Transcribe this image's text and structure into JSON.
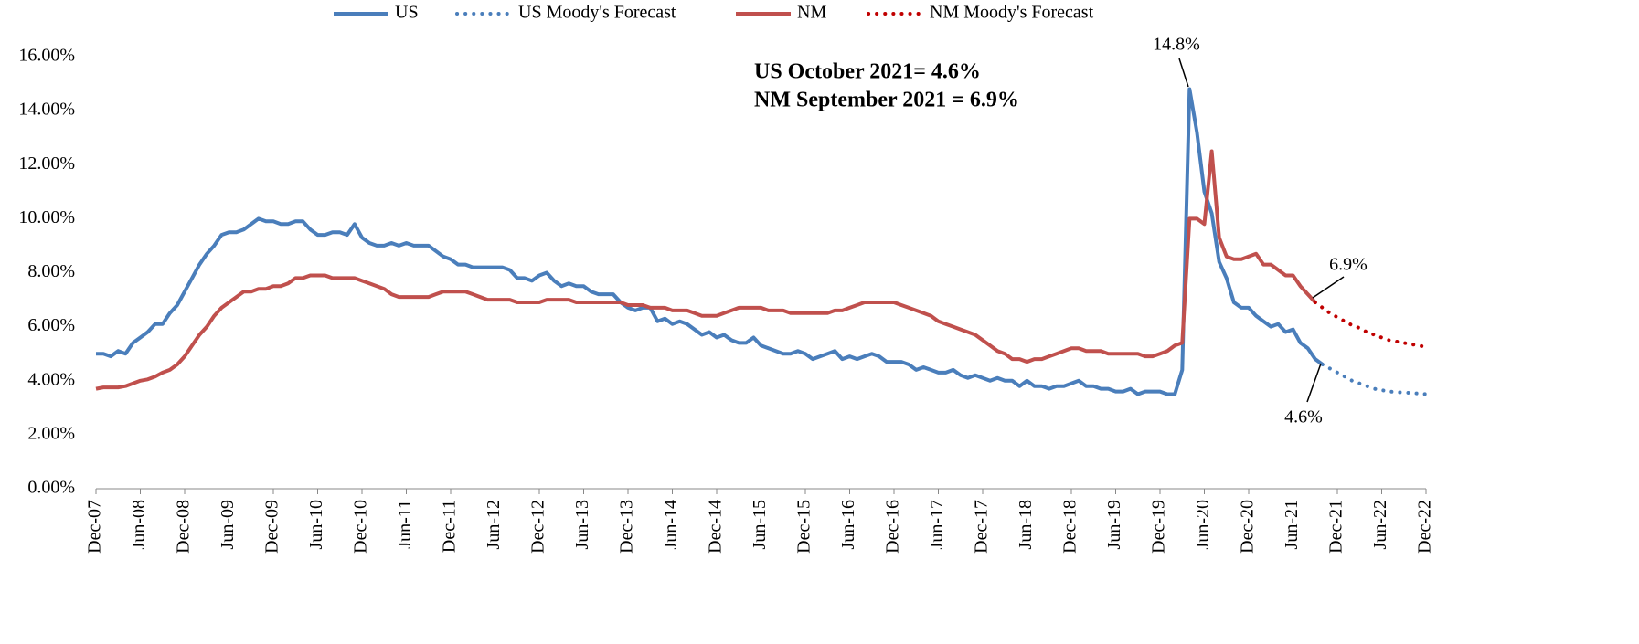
{
  "chart_data": {
    "type": "line",
    "categories": [
      "Dec-07",
      null,
      null,
      null,
      null,
      null,
      "Jun-08",
      null,
      null,
      null,
      null,
      null,
      "Dec-08",
      null,
      null,
      null,
      null,
      null,
      "Jun-09",
      null,
      null,
      null,
      null,
      null,
      "Dec-09",
      null,
      null,
      null,
      null,
      null,
      "Jun-10",
      null,
      null,
      null,
      null,
      null,
      "Dec-10",
      null,
      null,
      null,
      null,
      null,
      "Jun-11",
      null,
      null,
      null,
      null,
      null,
      "Dec-11",
      null,
      null,
      null,
      null,
      null,
      "Jun-12",
      null,
      null,
      null,
      null,
      null,
      "Dec-12",
      null,
      null,
      null,
      null,
      null,
      "Jun-13",
      null,
      null,
      null,
      null,
      null,
      "Dec-13",
      null,
      null,
      null,
      null,
      null,
      "Jun-14",
      null,
      null,
      null,
      null,
      null,
      "Dec-14",
      null,
      null,
      null,
      null,
      null,
      "Jun-15",
      null,
      null,
      null,
      null,
      null,
      "Dec-15",
      null,
      null,
      null,
      null,
      null,
      "Jun-16",
      null,
      null,
      null,
      null,
      null,
      "Dec-16",
      null,
      null,
      null,
      null,
      null,
      "Jun-17",
      null,
      null,
      null,
      null,
      null,
      "Dec-17",
      null,
      null,
      null,
      null,
      null,
      "Jun-18",
      null,
      null,
      null,
      null,
      null,
      "Dec-18",
      null,
      null,
      null,
      null,
      null,
      "Jun-19",
      null,
      null,
      null,
      null,
      null,
      "Dec-19",
      null,
      null,
      null,
      null,
      null,
      "Jun-20",
      null,
      null,
      null,
      null,
      null,
      "Dec-20",
      null,
      null,
      null,
      null,
      null,
      "Jun-21",
      null,
      null,
      null,
      null,
      null,
      "Dec-21",
      null,
      null,
      null,
      null,
      null,
      "Jun-22",
      null,
      null,
      null,
      null,
      null,
      "Dec-22"
    ],
    "series": [
      {
        "name": "US",
        "color": "#4a7ebb",
        "style": "solid",
        "values": [
          5.0,
          5.0,
          4.9,
          5.1,
          5.0,
          5.4,
          5.6,
          5.8,
          6.1,
          6.1,
          6.5,
          6.8,
          7.3,
          7.8,
          8.3,
          8.7,
          9.0,
          9.4,
          9.5,
          9.5,
          9.6,
          9.8,
          10.0,
          9.9,
          9.9,
          9.8,
          9.8,
          9.9,
          9.9,
          9.6,
          9.4,
          9.4,
          9.5,
          9.5,
          9.4,
          9.8,
          9.3,
          9.1,
          9.0,
          9.0,
          9.1,
          9.0,
          9.1,
          9.0,
          9.0,
          9.0,
          8.8,
          8.6,
          8.5,
          8.3,
          8.3,
          8.2,
          8.2,
          8.2,
          8.2,
          8.2,
          8.1,
          7.8,
          7.8,
          7.7,
          7.9,
          8.0,
          7.7,
          7.5,
          7.6,
          7.5,
          7.5,
          7.3,
          7.2,
          7.2,
          7.2,
          6.9,
          6.7,
          6.6,
          6.7,
          6.7,
          6.2,
          6.3,
          6.1,
          6.2,
          6.1,
          5.9,
          5.7,
          5.8,
          5.6,
          5.7,
          5.5,
          5.4,
          5.4,
          5.6,
          5.3,
          5.2,
          5.1,
          5.0,
          5.0,
          5.1,
          5.0,
          4.8,
          4.9,
          5.0,
          5.1,
          4.8,
          4.9,
          4.8,
          4.9,
          5.0,
          4.9,
          4.7,
          4.7,
          4.7,
          4.6,
          4.4,
          4.5,
          4.4,
          4.3,
          4.3,
          4.4,
          4.2,
          4.1,
          4.2,
          4.1,
          4.0,
          4.1,
          4.0,
          4.0,
          3.8,
          4.0,
          3.8,
          3.8,
          3.7,
          3.8,
          3.8,
          3.9,
          4.0,
          3.8,
          3.8,
          3.7,
          3.7,
          3.6,
          3.6,
          3.7,
          3.5,
          3.6,
          3.6,
          3.6,
          3.5,
          3.5,
          4.4,
          14.8,
          13.2,
          11.0,
          10.2,
          8.4,
          7.8,
          6.9,
          6.7,
          6.7,
          6.4,
          6.2,
          6.0,
          6.1,
          5.8,
          5.9,
          5.4,
          5.2,
          4.8,
          4.6,
          null,
          null,
          null,
          null,
          null,
          null,
          null,
          null,
          null,
          null,
          null,
          null,
          null,
          null
        ]
      },
      {
        "name": "US Moody's Forecast",
        "color": "#4a7ebb",
        "style": "dotted",
        "values": [
          null,
          null,
          null,
          null,
          null,
          null,
          null,
          null,
          null,
          null,
          null,
          null,
          null,
          null,
          null,
          null,
          null,
          null,
          null,
          null,
          null,
          null,
          null,
          null,
          null,
          null,
          null,
          null,
          null,
          null,
          null,
          null,
          null,
          null,
          null,
          null,
          null,
          null,
          null,
          null,
          null,
          null,
          null,
          null,
          null,
          null,
          null,
          null,
          null,
          null,
          null,
          null,
          null,
          null,
          null,
          null,
          null,
          null,
          null,
          null,
          null,
          null,
          null,
          null,
          null,
          null,
          null,
          null,
          null,
          null,
          null,
          null,
          null,
          null,
          null,
          null,
          null,
          null,
          null,
          null,
          null,
          null,
          null,
          null,
          null,
          null,
          null,
          null,
          null,
          null,
          null,
          null,
          null,
          null,
          null,
          null,
          null,
          null,
          null,
          null,
          null,
          null,
          null,
          null,
          null,
          null,
          null,
          null,
          null,
          null,
          null,
          null,
          null,
          null,
          null,
          null,
          null,
          null,
          null,
          null,
          null,
          null,
          null,
          null,
          null,
          null,
          null,
          null,
          null,
          null,
          null,
          null,
          null,
          null,
          null,
          null,
          null,
          null,
          null,
          null,
          null,
          null,
          null,
          null,
          null,
          null,
          null,
          null,
          null,
          null,
          null,
          null,
          null,
          null,
          null,
          null,
          null,
          null,
          null,
          null,
          null,
          null,
          null,
          null,
          null,
          null,
          4.6,
          4.45,
          4.3,
          4.15,
          4.0,
          3.9,
          3.8,
          3.7,
          3.65,
          3.6,
          3.58,
          3.56,
          3.55,
          3.52,
          3.5
        ]
      },
      {
        "name": "NM",
        "color": "#c0504d",
        "style": "solid",
        "values": [
          3.7,
          3.75,
          3.75,
          3.75,
          3.8,
          3.9,
          4.0,
          4.05,
          4.15,
          4.3,
          4.4,
          4.6,
          4.9,
          5.3,
          5.7,
          6.0,
          6.4,
          6.7,
          6.9,
          7.1,
          7.3,
          7.3,
          7.4,
          7.4,
          7.5,
          7.5,
          7.6,
          7.8,
          7.8,
          7.9,
          7.9,
          7.9,
          7.8,
          7.8,
          7.8,
          7.8,
          7.7,
          7.6,
          7.5,
          7.4,
          7.2,
          7.1,
          7.1,
          7.1,
          7.1,
          7.1,
          7.2,
          7.3,
          7.3,
          7.3,
          7.3,
          7.2,
          7.1,
          7.0,
          7.0,
          7.0,
          7.0,
          6.9,
          6.9,
          6.9,
          6.9,
          7.0,
          7.0,
          7.0,
          7.0,
          6.9,
          6.9,
          6.9,
          6.9,
          6.9,
          6.9,
          6.9,
          6.8,
          6.8,
          6.8,
          6.7,
          6.7,
          6.7,
          6.6,
          6.6,
          6.6,
          6.5,
          6.4,
          6.4,
          6.4,
          6.5,
          6.6,
          6.7,
          6.7,
          6.7,
          6.7,
          6.6,
          6.6,
          6.6,
          6.5,
          6.5,
          6.5,
          6.5,
          6.5,
          6.5,
          6.6,
          6.6,
          6.7,
          6.8,
          6.9,
          6.9,
          6.9,
          6.9,
          6.9,
          6.8,
          6.7,
          6.6,
          6.5,
          6.4,
          6.2,
          6.1,
          6.0,
          5.9,
          5.8,
          5.7,
          5.5,
          5.3,
          5.1,
          5.0,
          4.8,
          4.8,
          4.7,
          4.8,
          4.8,
          4.9,
          5.0,
          5.1,
          5.2,
          5.2,
          5.1,
          5.1,
          5.1,
          5.0,
          5.0,
          5.0,
          5.0,
          5.0,
          4.9,
          4.9,
          5.0,
          5.1,
          5.3,
          5.4,
          10.0,
          10.0,
          9.8,
          12.5,
          9.3,
          8.6,
          8.5,
          8.5,
          8.6,
          8.7,
          8.3,
          8.3,
          8.1,
          7.9,
          7.9,
          7.5,
          7.2,
          6.9,
          null,
          null,
          null,
          null,
          null,
          null,
          null,
          null,
          null,
          null,
          null,
          null,
          null,
          null,
          null
        ]
      },
      {
        "name": "NM Moody's Forecast",
        "color": "#c00000",
        "style": "dotted",
        "values": [
          null,
          null,
          null,
          null,
          null,
          null,
          null,
          null,
          null,
          null,
          null,
          null,
          null,
          null,
          null,
          null,
          null,
          null,
          null,
          null,
          null,
          null,
          null,
          null,
          null,
          null,
          null,
          null,
          null,
          null,
          null,
          null,
          null,
          null,
          null,
          null,
          null,
          null,
          null,
          null,
          null,
          null,
          null,
          null,
          null,
          null,
          null,
          null,
          null,
          null,
          null,
          null,
          null,
          null,
          null,
          null,
          null,
          null,
          null,
          null,
          null,
          null,
          null,
          null,
          null,
          null,
          null,
          null,
          null,
          null,
          null,
          null,
          null,
          null,
          null,
          null,
          null,
          null,
          null,
          null,
          null,
          null,
          null,
          null,
          null,
          null,
          null,
          null,
          null,
          null,
          null,
          null,
          null,
          null,
          null,
          null,
          null,
          null,
          null,
          null,
          null,
          null,
          null,
          null,
          null,
          null,
          null,
          null,
          null,
          null,
          null,
          null,
          null,
          null,
          null,
          null,
          null,
          null,
          null,
          null,
          null,
          null,
          null,
          null,
          null,
          null,
          null,
          null,
          null,
          null,
          null,
          null,
          null,
          null,
          null,
          null,
          null,
          null,
          null,
          null,
          null,
          null,
          null,
          null,
          null,
          null,
          null,
          null,
          null,
          null,
          null,
          null,
          null,
          null,
          null,
          null,
          null,
          null,
          null,
          null,
          null,
          null,
          null,
          null,
          null,
          6.9,
          6.7,
          6.5,
          6.35,
          6.2,
          6.05,
          5.95,
          5.8,
          5.7,
          5.6,
          5.5,
          5.45,
          5.4,
          5.35,
          5.3,
          5.25
        ]
      }
    ],
    "ylim": [
      0,
      16
    ],
    "yticks": [
      {
        "value": 0,
        "label": "0.00%"
      },
      {
        "value": 2,
        "label": "2.00%"
      },
      {
        "value": 4,
        "label": "4.00%"
      },
      {
        "value": 6,
        "label": "6.00%"
      },
      {
        "value": 8,
        "label": "8.00%"
      },
      {
        "value": 10,
        "label": "10.00%"
      },
      {
        "value": 12,
        "label": "12.00%"
      },
      {
        "value": 14,
        "label": "14.00%"
      },
      {
        "value": 16,
        "label": "16.00%"
      }
    ],
    "grid": false,
    "legend": "top",
    "annotations": [
      "14.8%",
      "6.9%",
      "4.6%"
    ],
    "info": [
      "US October 2021= 4.6%",
      "NM September 2021  = 6.9%"
    ]
  }
}
